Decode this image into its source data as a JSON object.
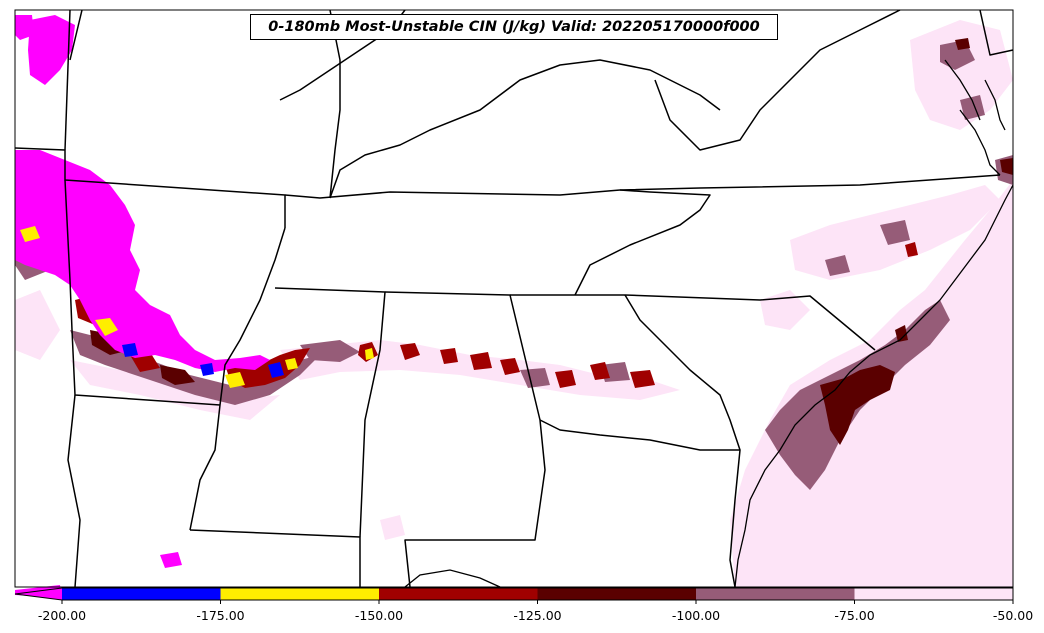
{
  "title": "0-180mb Most-Unstable CIN (J/kg) Valid: 202205170000f000",
  "colorbar": {
    "extend": "min",
    "ticks": [
      "-200.00",
      "-175.00",
      "-150.00",
      "-125.00",
      "-100.00",
      "-75.00",
      "-50.00"
    ],
    "bins": [
      {
        "from": -225,
        "to": -200,
        "color": "#ff00ff"
      },
      {
        "from": -200,
        "to": -175,
        "color": "#0000ff"
      },
      {
        "from": -175,
        "to": -150,
        "color": "#ffee00"
      },
      {
        "from": -150,
        "to": -125,
        "color": "#a00000"
      },
      {
        "from": -125,
        "to": -100,
        "color": "#5a0000"
      },
      {
        "from": -100,
        "to": -75,
        "color": "#965c78"
      },
      {
        "from": -75,
        "to": -50,
        "color": "#fde4f7"
      }
    ]
  },
  "map": {
    "region": "Southeastern United States",
    "boundaries_color": "#000000"
  }
}
